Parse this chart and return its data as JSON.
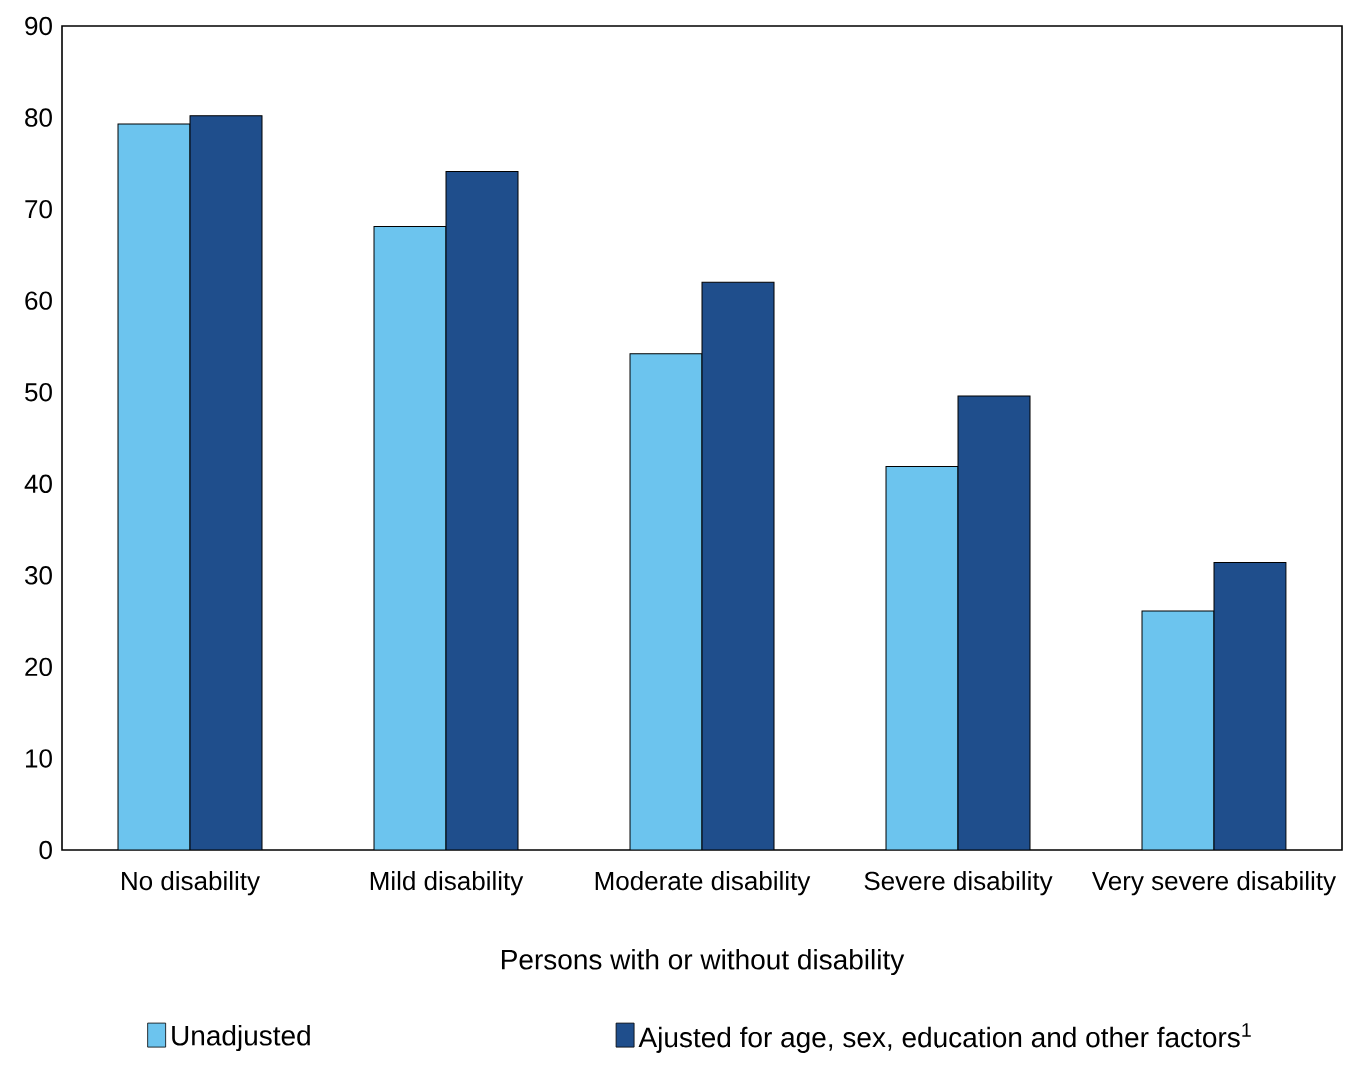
{
  "chart_data": {
    "type": "bar",
    "xlabel": "Persons with or without disability",
    "categories": [
      "No disability",
      "Mild disability",
      "Moderate disability",
      "Severe disability",
      "Very severe disability"
    ],
    "series": [
      {
        "name": "Unadjusted",
        "color": "#6cc4ee",
        "values": [
          79.3,
          68.1,
          54.2,
          41.9,
          26.1
        ]
      },
      {
        "name": "Ajusted for age, sex, education and other factors$^{1}$",
        "color": "#1f4e8c",
        "values": [
          80.2,
          74.1,
          62.0,
          49.6,
          31.4
        ]
      }
    ],
    "ylim": [
      0,
      90
    ],
    "yticks": [
      0,
      10,
      20,
      30,
      40,
      50,
      60,
      70,
      80,
      90
    ],
    "legend": "bottom"
  }
}
